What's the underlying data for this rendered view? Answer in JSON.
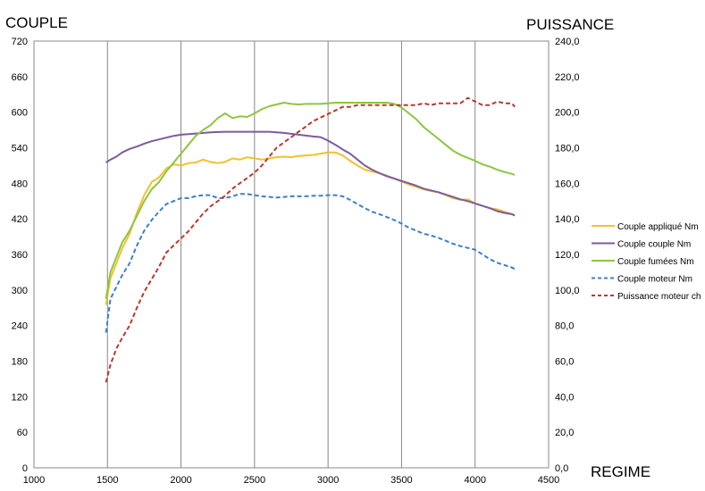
{
  "chart_data": {
    "type": "line",
    "y_left_label": "COUPLE",
    "y_right_label": "PUISSANCE",
    "x_label": "REGIME",
    "xlim": [
      1000,
      4500
    ],
    "ylim_left": [
      0,
      720
    ],
    "ylim_right": [
      0,
      240
    ],
    "x_ticks": [
      "1000",
      "1500",
      "2000",
      "2500",
      "3000",
      "3500",
      "4000",
      "4500"
    ],
    "y_left_ticks": [
      "0",
      "60",
      "120",
      "180",
      "240",
      "300",
      "360",
      "420",
      "480",
      "540",
      "600",
      "660",
      "720"
    ],
    "y_right_ticks": [
      "0,0",
      "20,0",
      "40,0",
      "60,0",
      "80,0",
      "100,0",
      "120,0",
      "140,0",
      "160,0",
      "180,0",
      "200,0",
      "220,0",
      "240,0"
    ],
    "grid": {
      "vertical": true,
      "horizontal": false
    },
    "legend_position": "right",
    "series": [
      {
        "name": "Couple appliqué  Nm",
        "axis": "left",
        "color": "#f2c12e",
        "dash": "solid",
        "x": [
          1490,
          1520,
          1560,
          1600,
          1650,
          1700,
          1750,
          1800,
          1850,
          1900,
          1950,
          2000,
          2050,
          2100,
          2150,
          2200,
          2250,
          2300,
          2350,
          2400,
          2450,
          2500,
          2550,
          2600,
          2650,
          2700,
          2750,
          2800,
          2850,
          2900,
          2950,
          3000,
          3050,
          3100,
          3150,
          3200,
          3250,
          3300,
          3350,
          3400,
          3450,
          3500,
          3550,
          3600,
          3650,
          3700,
          3750,
          3800,
          3850,
          3900,
          3950,
          4000,
          4050,
          4100,
          4150,
          4200,
          4250,
          4270
        ],
        "y": [
          275,
          320,
          345,
          370,
          395,
          430,
          460,
          482,
          490,
          505,
          512,
          510,
          514,
          515,
          520,
          516,
          514,
          516,
          522,
          520,
          524,
          522,
          520,
          522,
          524,
          525,
          524,
          526,
          527,
          528,
          530,
          532,
          532,
          527,
          518,
          510,
          503,
          500,
          497,
          493,
          488,
          483,
          478,
          474,
          470,
          467,
          465,
          460,
          455,
          452,
          453,
          446,
          442,
          438,
          436,
          432,
          428,
          425
        ]
      },
      {
        "name": "Couple couple  Nm",
        "axis": "left",
        "color": "#7b5b9e",
        "dash": "solid",
        "x": [
          1490,
          1520,
          1560,
          1600,
          1650,
          1700,
          1750,
          1800,
          1850,
          1900,
          1950,
          2000,
          2100,
          2200,
          2300,
          2400,
          2500,
          2600,
          2700,
          2800,
          2900,
          2950,
          3000,
          3050,
          3100,
          3150,
          3200,
          3250,
          3300,
          3350,
          3400,
          3450,
          3500,
          3550,
          3600,
          3650,
          3700,
          3750,
          3800,
          3850,
          3900,
          3950,
          4000,
          4050,
          4100,
          4150,
          4200,
          4250,
          4270
        ],
        "y": [
          515,
          520,
          525,
          532,
          538,
          542,
          547,
          551,
          554,
          557,
          560,
          562,
          564,
          566,
          567,
          567,
          567,
          567,
          565,
          562,
          559,
          558,
          552,
          545,
          537,
          530,
          520,
          510,
          503,
          497,
          492,
          488,
          484,
          480,
          476,
          471,
          468,
          465,
          461,
          457,
          453,
          450,
          446,
          442,
          438,
          433,
          430,
          428,
          426
        ]
      },
      {
        "name": "Couple fumées  Nm",
        "axis": "left",
        "color": "#8dc63f",
        "dash": "solid",
        "x": [
          1490,
          1520,
          1560,
          1600,
          1650,
          1700,
          1750,
          1800,
          1850,
          1900,
          1950,
          2000,
          2050,
          2100,
          2150,
          2200,
          2250,
          2300,
          2350,
          2400,
          2450,
          2500,
          2550,
          2600,
          2650,
          2700,
          2750,
          2800,
          2850,
          2900,
          2950,
          3000,
          3050,
          3100,
          3150,
          3200,
          3250,
          3300,
          3350,
          3400,
          3450,
          3500,
          3550,
          3600,
          3650,
          3700,
          3750,
          3800,
          3850,
          3900,
          3950,
          4000,
          4050,
          4100,
          4150,
          4200,
          4250,
          4270
        ],
        "y": [
          285,
          330,
          355,
          380,
          400,
          425,
          450,
          470,
          482,
          500,
          515,
          530,
          545,
          560,
          570,
          578,
          590,
          598,
          590,
          593,
          592,
          598,
          605,
          610,
          613,
          616,
          614,
          613,
          614,
          614,
          614,
          615,
          616,
          616,
          616,
          616,
          616,
          616,
          616,
          616,
          614,
          608,
          598,
          588,
          575,
          565,
          555,
          545,
          535,
          528,
          523,
          518,
          512,
          508,
          503,
          499,
          496,
          494
        ]
      },
      {
        "name": "Couple moteur  Nm",
        "axis": "left",
        "color": "#3f7fc1",
        "dash": "dashed",
        "x": [
          1490,
          1520,
          1560,
          1600,
          1650,
          1700,
          1750,
          1800,
          1850,
          1900,
          1950,
          2000,
          2050,
          2100,
          2150,
          2200,
          2250,
          2300,
          2350,
          2400,
          2450,
          2500,
          2550,
          2600,
          2650,
          2700,
          2750,
          2800,
          2850,
          2900,
          2950,
          3000,
          3050,
          3100,
          3150,
          3200,
          3250,
          3300,
          3350,
          3400,
          3450,
          3500,
          3550,
          3600,
          3650,
          3700,
          3750,
          3800,
          3850,
          3900,
          3950,
          4000,
          4050,
          4100,
          4150,
          4200,
          4250,
          4270
        ],
        "y": [
          228,
          285,
          305,
          325,
          345,
          375,
          400,
          418,
          432,
          445,
          450,
          455,
          455,
          458,
          460,
          460,
          455,
          455,
          458,
          462,
          462,
          460,
          458,
          457,
          456,
          457,
          458,
          458,
          458,
          459,
          459,
          460,
          460,
          458,
          452,
          445,
          438,
          432,
          428,
          423,
          418,
          412,
          405,
          400,
          395,
          392,
          388,
          383,
          378,
          374,
          371,
          368,
          360,
          352,
          346,
          342,
          338,
          335
        ]
      },
      {
        "name": "Puissance moteur ch",
        "axis": "right",
        "color": "#b83a2e",
        "dash": "dashed",
        "x": [
          1490,
          1520,
          1560,
          1600,
          1650,
          1700,
          1750,
          1800,
          1850,
          1900,
          1950,
          2000,
          2050,
          2100,
          2150,
          2200,
          2250,
          2300,
          2350,
          2400,
          2450,
          2500,
          2550,
          2600,
          2650,
          2700,
          2750,
          2800,
          2850,
          2900,
          2950,
          3000,
          3050,
          3100,
          3150,
          3200,
          3250,
          3300,
          3350,
          3400,
          3450,
          3500,
          3550,
          3600,
          3650,
          3700,
          3750,
          3800,
          3850,
          3900,
          3950,
          4000,
          4050,
          4100,
          4150,
          4200,
          4250,
          4270
        ],
        "y": [
          48,
          58,
          67,
          73,
          80,
          90,
          99,
          106,
          113,
          121,
          125,
          129,
          133,
          138,
          143,
          147,
          150,
          153,
          157,
          160,
          163,
          166,
          170,
          175,
          180,
          183,
          186,
          189,
          192,
          195,
          197,
          199,
          201,
          203,
          203,
          204,
          204,
          204,
          204,
          204,
          204,
          204,
          204,
          204,
          205,
          204,
          205,
          205,
          205,
          205,
          208,
          206,
          204,
          204,
          206,
          205,
          205,
          203
        ]
      }
    ]
  }
}
